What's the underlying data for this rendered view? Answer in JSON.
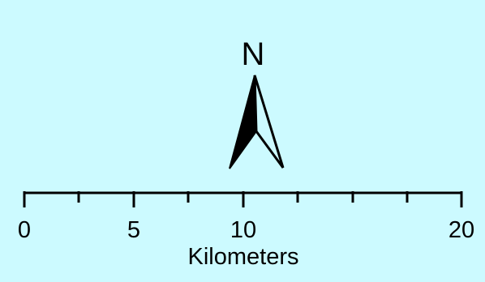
{
  "background_color": "#ccfaff",
  "ink_color": "#000000",
  "north_arrow": {
    "label": "N",
    "icon": "north-arrow-icon"
  },
  "scale_bar": {
    "unit_label": "Kilometers",
    "tick_labels": [
      "0",
      "5",
      "10",
      "20"
    ]
  }
}
